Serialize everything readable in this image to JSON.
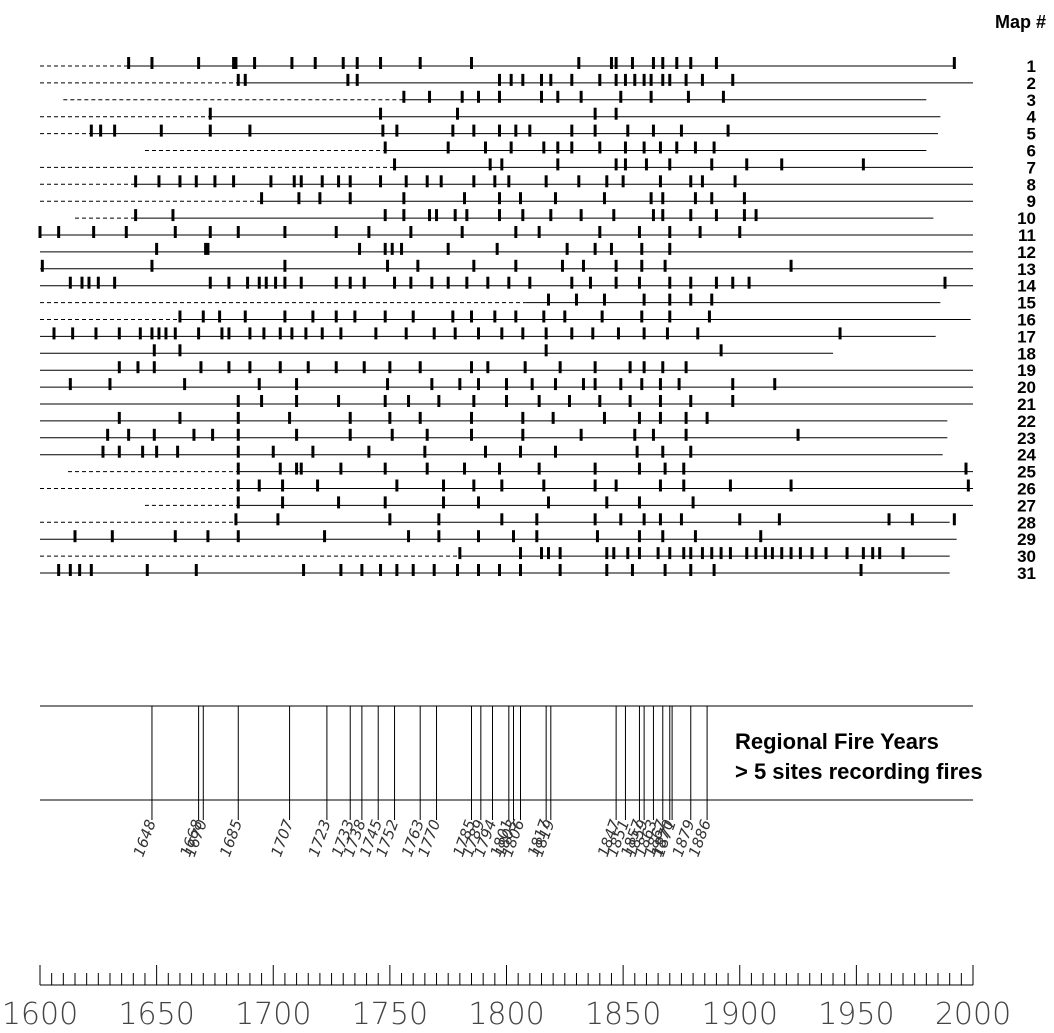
{
  "chart_data": {
    "type": "timeline",
    "heading": "Map #",
    "xlim": [
      1600,
      2000
    ],
    "x_ticks": [
      1600,
      1650,
      1700,
      1750,
      1800,
      1850,
      1900,
      1950,
      2000
    ],
    "sites": [
      {
        "name": "1",
        "start": 1600,
        "solid_from": 1638,
        "end": 1992,
        "fires": [
          1638,
          1648,
          1668,
          1683,
          1684,
          1692,
          1708,
          1718,
          1730,
          1736,
          1746,
          1763,
          1785,
          1831,
          1845,
          1847,
          1854,
          1863,
          1867,
          1873,
          1879,
          1890,
          1992
        ]
      },
      {
        "name": "2",
        "start": 1600,
        "solid_from": 1685,
        "end": 2000,
        "fires": [
          1685,
          1688,
          1732,
          1736,
          1797,
          1802,
          1807,
          1815,
          1819,
          1828,
          1840,
          1847,
          1851,
          1855,
          1859,
          1862,
          1867,
          1870,
          1877,
          1884,
          1897
        ]
      },
      {
        "name": "3",
        "start": 1610,
        "solid_from": 1756,
        "end": 1980,
        "fires": [
          1756,
          1767,
          1781,
          1788,
          1797,
          1815,
          1822,
          1832,
          1849,
          1862,
          1878,
          1893
        ]
      },
      {
        "name": "4",
        "start": 1600,
        "solid_from": 1673,
        "end": 1986,
        "fires": [
          1673,
          1746,
          1779,
          1838,
          1847
        ]
      },
      {
        "name": "5",
        "start": 1600,
        "solid_from": 1622,
        "end": 1985,
        "fires": [
          1622,
          1626,
          1632,
          1652,
          1673,
          1690,
          1747,
          1753,
          1777,
          1786,
          1797,
          1804,
          1810,
          1828,
          1838,
          1852,
          1863,
          1875,
          1895
        ]
      },
      {
        "name": "6",
        "start": 1645,
        "solid_from": 1748,
        "end": 1980,
        "fires": [
          1748,
          1775,
          1791,
          1802,
          1816,
          1822,
          1828,
          1840,
          1851,
          1859,
          1866,
          1873,
          1881,
          1889
        ]
      },
      {
        "name": "7",
        "start": 1600,
        "solid_from": 1752,
        "end": 2000,
        "fires": [
          1752,
          1793,
          1798,
          1822,
          1847,
          1851,
          1860,
          1870,
          1888,
          1903,
          1918,
          1953
        ]
      },
      {
        "name": "8",
        "start": 1600,
        "solid_from": 1641,
        "end": 2000,
        "fires": [
          1641,
          1651,
          1660,
          1667,
          1675,
          1683,
          1699,
          1709,
          1712,
          1721,
          1728,
          1733,
          1746,
          1757,
          1766,
          1772,
          1786,
          1795,
          1801,
          1817,
          1831,
          1843,
          1850,
          1866,
          1879,
          1884,
          1898
        ]
      },
      {
        "name": "9",
        "start": 1600,
        "solid_from": 1695,
        "end": 2000,
        "fires": [
          1695,
          1711,
          1720,
          1733,
          1756,
          1782,
          1797,
          1806,
          1821,
          1842,
          1862,
          1867,
          1881,
          1888,
          1902
        ]
      },
      {
        "name": "10",
        "start": 1615,
        "solid_from": 1641,
        "end": 1983,
        "fires": [
          1641,
          1657,
          1748,
          1756,
          1767,
          1770,
          1778,
          1783,
          1797,
          1807,
          1819,
          1832,
          1846,
          1863,
          1867,
          1879,
          1890,
          1902,
          1907
        ]
      },
      {
        "name": "11",
        "start": 1600,
        "solid_from": 1600,
        "end": 2000,
        "fires": [
          1600,
          1608,
          1623,
          1637,
          1658,
          1673,
          1685,
          1705,
          1727,
          1741,
          1759,
          1781,
          1804,
          1814,
          1840,
          1857,
          1870,
          1883,
          1900
        ]
      },
      {
        "name": "12",
        "start": 1600,
        "solid_from": 1600,
        "end": 2000,
        "fires": [
          1650,
          1671,
          1672,
          1737,
          1748,
          1751,
          1755,
          1775,
          1796,
          1826,
          1838,
          1845,
          1858,
          1870
        ]
      },
      {
        "name": "13",
        "start": 1600,
        "solid_from": 1600,
        "end": 2000,
        "fires": [
          1601,
          1648,
          1705,
          1749,
          1762,
          1786,
          1804,
          1824,
          1833,
          1847,
          1858,
          1868,
          1922
        ]
      },
      {
        "name": "14",
        "start": 1600,
        "solid_from": 1600,
        "end": 2000,
        "fires": [
          1613,
          1618,
          1621,
          1625,
          1632,
          1673,
          1681,
          1689,
          1694,
          1697,
          1701,
          1705,
          1712,
          1727,
          1733,
          1739,
          1752,
          1759,
          1768,
          1775,
          1783,
          1792,
          1801,
          1810,
          1828,
          1836,
          1847,
          1857,
          1870,
          1879,
          1890,
          1897,
          1904,
          1988
        ]
      },
      {
        "name": "15",
        "start": 1600,
        "solid_from": 1808,
        "end": 1986,
        "fires": [
          1818,
          1830,
          1842,
          1859,
          1870,
          1879,
          1888
        ]
      },
      {
        "name": "16",
        "start": 1600,
        "solid_from": 1660,
        "end": 1999,
        "fires": [
          1660,
          1670,
          1677,
          1688,
          1705,
          1717,
          1727,
          1735,
          1748,
          1760,
          1777,
          1785,
          1795,
          1804,
          1816,
          1825,
          1841,
          1858,
          1870,
          1887
        ]
      },
      {
        "name": "17",
        "start": 1600,
        "solid_from": 1600,
        "end": 1984,
        "fires": [
          1606,
          1614,
          1624,
          1634,
          1643,
          1648,
          1651,
          1654,
          1658,
          1668,
          1678,
          1681,
          1690,
          1696,
          1703,
          1708,
          1714,
          1721,
          1729,
          1744,
          1757,
          1769,
          1778,
          1788,
          1798,
          1807,
          1817,
          1828,
          1837,
          1848,
          1859,
          1869,
          1882,
          1943
        ]
      },
      {
        "name": "18",
        "start": 1600,
        "solid_from": 1600,
        "end": 1940,
        "fires": [
          1649,
          1660,
          1817,
          1892
        ]
      },
      {
        "name": "19",
        "start": 1600,
        "solid_from": 1600,
        "end": 2000,
        "fires": [
          1634,
          1642,
          1649,
          1669,
          1681,
          1690,
          1703,
          1715,
          1727,
          1739,
          1750,
          1763,
          1785,
          1792,
          1808,
          1823,
          1838,
          1853,
          1859,
          1867,
          1877
        ]
      },
      {
        "name": "20",
        "start": 1600,
        "solid_from": 1600,
        "end": 2000,
        "fires": [
          1613,
          1630,
          1662,
          1694,
          1710,
          1749,
          1768,
          1780,
          1788,
          1800,
          1811,
          1821,
          1833,
          1838,
          1849,
          1858,
          1866,
          1874,
          1897,
          1915
        ]
      },
      {
        "name": "21",
        "start": 1600,
        "solid_from": 1600,
        "end": 2000,
        "fires": [
          1685,
          1695,
          1710,
          1728,
          1748,
          1758,
          1771,
          1786,
          1800,
          1814,
          1827,
          1840,
          1853,
          1866,
          1879,
          1897
        ]
      },
      {
        "name": "22",
        "start": 1600,
        "solid_from": 1600,
        "end": 1989,
        "fires": [
          1634,
          1660,
          1685,
          1707,
          1733,
          1750,
          1763,
          1785,
          1807,
          1820,
          1842,
          1857,
          1866,
          1877,
          1886
        ]
      },
      {
        "name": "23",
        "start": 1600,
        "solid_from": 1600,
        "end": 1989,
        "fires": [
          1629,
          1638,
          1649,
          1666,
          1674,
          1685,
          1710,
          1733,
          1751,
          1766,
          1785,
          1807,
          1832,
          1855,
          1863,
          1877,
          1925
        ]
      },
      {
        "name": "24",
        "start": 1600,
        "solid_from": 1600,
        "end": 1987,
        "fires": [
          1627,
          1634,
          1644,
          1650,
          1659,
          1685,
          1700,
          1717,
          1741,
          1765,
          1791,
          1806,
          1821,
          1856,
          1867,
          1879
        ]
      },
      {
        "name": "25",
        "start": 1612,
        "solid_from": 1685,
        "end": 2000,
        "fires": [
          1685,
          1703,
          1710,
          1712,
          1729,
          1748,
          1766,
          1782,
          1797,
          1814,
          1838,
          1857,
          1868,
          1876,
          1997
        ]
      },
      {
        "name": "26",
        "start": 1600,
        "solid_from": 1685,
        "end": 2000,
        "fires": [
          1685,
          1694,
          1704,
          1719,
          1753,
          1773,
          1786,
          1798,
          1816,
          1838,
          1847,
          1866,
          1876,
          1896,
          1922,
          1998
        ]
      },
      {
        "name": "27",
        "start": 1645,
        "solid_from": 1685,
        "end": 2000,
        "fires": [
          1685,
          1704,
          1728,
          1748,
          1773,
          1788,
          1818,
          1843,
          1857,
          1880
        ]
      },
      {
        "name": "28",
        "start": 1600,
        "solid_from": 1684,
        "end": 1990,
        "fires": [
          1684,
          1702,
          1750,
          1771,
          1798,
          1813,
          1838,
          1849,
          1859,
          1866,
          1875,
          1900,
          1917,
          1964,
          1974,
          1992
        ]
      },
      {
        "name": "29",
        "start": 1600,
        "solid_from": 1600,
        "end": 1993,
        "fires": [
          1615,
          1631,
          1658,
          1672,
          1685,
          1722,
          1758,
          1771,
          1788,
          1803,
          1813,
          1839,
          1857,
          1867,
          1881,
          1909
        ]
      },
      {
        "name": "30",
        "start": 1600,
        "solid_from": 1780,
        "end": 1990,
        "fires": [
          1780,
          1806,
          1815,
          1818,
          1823,
          1843,
          1846,
          1852,
          1857,
          1865,
          1870,
          1876,
          1879,
          1884,
          1888,
          1892,
          1896,
          1903,
          1907,
          1911,
          1914,
          1918,
          1922,
          1926,
          1931,
          1937,
          1946,
          1953,
          1957,
          1960,
          1970
        ]
      },
      {
        "name": "31",
        "start": 1600,
        "solid_from": 1600,
        "end": 1990,
        "fires": [
          1608,
          1613,
          1617,
          1622,
          1646,
          1667,
          1713,
          1729,
          1738,
          1746,
          1753,
          1760,
          1769,
          1779,
          1788,
          1797,
          1806,
          1823,
          1843,
          1854,
          1868,
          1879,
          1889,
          1952
        ]
      }
    ],
    "regional": {
      "title_line1": "Regional Fire Years",
      "title_line2": "> 5 sites recording fires",
      "years": [
        "1648",
        "1668",
        "1670",
        "1685",
        "1707",
        "1723",
        "1733",
        "1738",
        "1745",
        "1752",
        "1763",
        "1770",
        "1785",
        "1789",
        "1794",
        "1801",
        "1803",
        "1806",
        "1817",
        "1819",
        "1847",
        "1851",
        "1857",
        "1859",
        "1863",
        "1867",
        "1870",
        "1871",
        "1879",
        "1886"
      ]
    }
  }
}
